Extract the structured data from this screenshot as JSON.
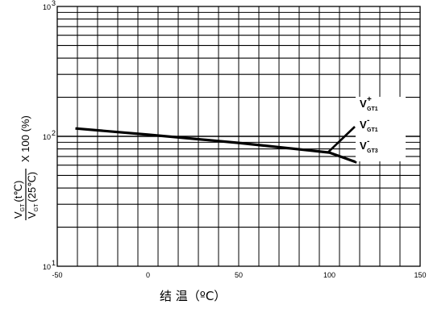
{
  "chart_data": {
    "type": "line",
    "xlabel": "结 温（ºC）",
    "ylabel": {
      "frac_top_main": "V",
      "frac_top_sub": "GT",
      "frac_top_arg": "(t℃)",
      "frac_bottom_main": "V",
      "frac_bottom_sub": "GT",
      "frac_bottom_arg": "(25℃)",
      "suffix": "X 100 (%)"
    },
    "x_ticks": [
      "-50",
      "0",
      "50",
      "100",
      "150"
    ],
    "x_tick_values": [
      -50,
      0,
      50,
      100,
      150
    ],
    "xlim": [
      -50,
      150
    ],
    "y_scale": "log",
    "ylim": [
      10,
      1000
    ],
    "y_ticks": [
      {
        "value": 10,
        "base": "10",
        "exp": "1"
      },
      {
        "value": 100,
        "base": "10",
        "exp": "2"
      },
      {
        "value": 1000,
        "base": "10",
        "exp": "3"
      }
    ],
    "grid": true,
    "series": [
      {
        "x": [
          -40,
          0,
          50,
          100,
          115
        ],
        "y": [
          115,
          103,
          89,
          75,
          63
        ]
      }
    ],
    "legend": {
      "entries": [
        {
          "main": "V",
          "sup": "+",
          "sub": "GT1"
        },
        {
          "main": "V",
          "sup": "-",
          "sub": "GT1"
        },
        {
          "main": "V",
          "sup": "-",
          "sub": "GT3"
        }
      ],
      "pointer_x": 100,
      "pointer_y": 75
    }
  }
}
